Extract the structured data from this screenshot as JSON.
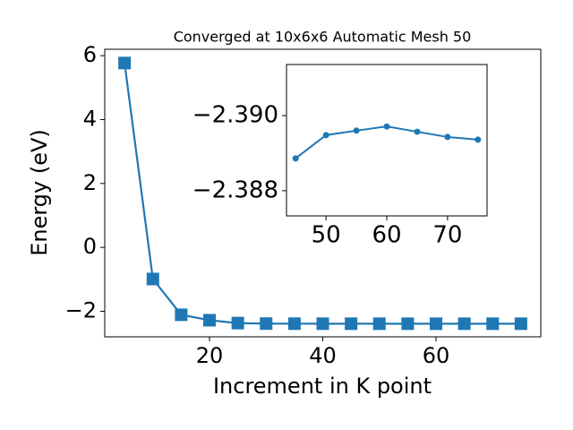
{
  "chart_data": [
    {
      "type": "line",
      "title": "Converged at 10x6x6 Automatic Mesh 50",
      "xlabel": "Increment in K point",
      "ylabel": "Energy (eV)",
      "series": [
        {
          "color": "#1f77b4",
          "marker": "square",
          "x": [
            5,
            10,
            15,
            20,
            25,
            30,
            35,
            40,
            45,
            50,
            55,
            60,
            65,
            70,
            75
          ],
          "values": [
            5.77,
            -0.99,
            -2.11,
            -2.28,
            -2.37,
            -2.386,
            -2.388,
            -2.389,
            -2.3889,
            -2.3895,
            -2.3896,
            -2.3897,
            -2.3896,
            -2.3894,
            -2.3894
          ]
        }
      ],
      "xlim": [
        1.5,
        78.5
      ],
      "xticks": [
        20,
        40,
        60
      ],
      "ylim": [
        -2.8,
        6.2
      ],
      "yticks": [
        {
          "value": -2,
          "label": "−2"
        },
        0,
        2,
        4,
        6
      ]
    },
    {
      "type": "line",
      "series": [
        {
          "color": "#1f77b4",
          "marker": "circle",
          "x": [
            45,
            50,
            55,
            60,
            65,
            70,
            75
          ],
          "values": [
            -2.38886,
            -2.38948,
            -2.3896,
            -2.38971,
            -2.38957,
            -2.38943,
            -2.38936
          ]
        }
      ],
      "xlim": [
        43.5,
        76.5
      ],
      "xticks": [
        50,
        60,
        70
      ],
      "ylim": [
        -2.38733,
        -2.39136
      ],
      "yticks": [
        {
          "value": -2.388,
          "label": "−2.388"
        },
        {
          "value": -2.39,
          "label": "−2.390"
        }
      ]
    }
  ]
}
